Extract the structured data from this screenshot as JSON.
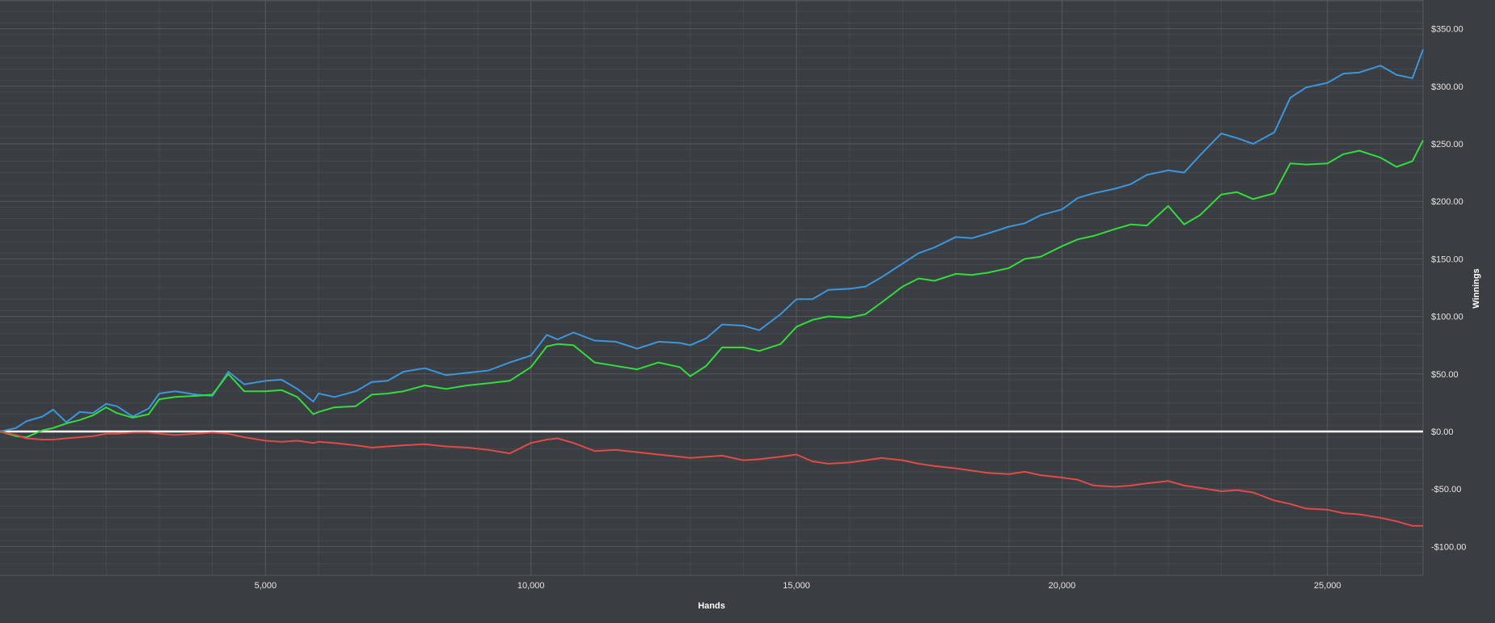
{
  "chart_data": {
    "type": "line",
    "xlabel": "Hands",
    "ylabel": "Winnings",
    "xlim": [
      0,
      26800
    ],
    "ylim": [
      -125,
      375
    ],
    "x_ticks": [
      {
        "value": 5000,
        "label": "5,000"
      },
      {
        "value": 10000,
        "label": "10,000"
      },
      {
        "value": 15000,
        "label": "15,000"
      },
      {
        "value": 20000,
        "label": "20,000"
      },
      {
        "value": 25000,
        "label": "25,000"
      }
    ],
    "y_ticks": [
      {
        "value": 350,
        "label": "$350.00"
      },
      {
        "value": 300,
        "label": "$300.00"
      },
      {
        "value": 250,
        "label": "$250.00"
      },
      {
        "value": 200,
        "label": "$200.00"
      },
      {
        "value": 150,
        "label": "$150.00"
      },
      {
        "value": 100,
        "label": "$100.00"
      },
      {
        "value": 50,
        "label": "$50.00"
      },
      {
        "value": 0,
        "label": "$0.00"
      },
      {
        "value": -50,
        "label": "-$50.00"
      },
      {
        "value": -100,
        "label": "-$100.00"
      }
    ],
    "grid": true,
    "legend": "none",
    "colors": {
      "background": "#3a3d42",
      "grid_major": "#555a60",
      "grid_minor": "#464a50",
      "zero_line": "#ffffff",
      "tick_text": "#e6e6e6",
      "label_text": "#ffffff"
    },
    "series": [
      {
        "color": "#3c96dc",
        "x": [
          0,
          300,
          500,
          800,
          1000,
          1250,
          1500,
          1750,
          2000,
          2200,
          2500,
          2800,
          3000,
          3300,
          3700,
          4000,
          4300,
          4600,
          5000,
          5300,
          5600,
          5900,
          6000,
          6300,
          6700,
          7000,
          7300,
          7600,
          8000,
          8400,
          8800,
          9200,
          9600,
          10000,
          10300,
          10500,
          10800,
          11200,
          11600,
          12000,
          12400,
          12800,
          13000,
          13300,
          13600,
          14000,
          14300,
          14700,
          15000,
          15300,
          15600,
          16000,
          16300,
          16600,
          17000,
          17300,
          17600,
          18000,
          18300,
          18600,
          19000,
          19300,
          19600,
          20000,
          20300,
          20600,
          21000,
          21300,
          21600,
          22000,
          22300,
          22600,
          23000,
          23300,
          23600,
          24000,
          24300,
          24600,
          25000,
          25300,
          25600,
          26000,
          26300,
          26600,
          26800
        ],
        "y": [
          0,
          3,
          9,
          13,
          19,
          8,
          17,
          16,
          24,
          22,
          13,
          20,
          33,
          35,
          32,
          31,
          52,
          41,
          44,
          45,
          37,
          26,
          33,
          30,
          35,
          43,
          44,
          52,
          55,
          49,
          51,
          53,
          60,
          66,
          84,
          80,
          86,
          79,
          78,
          72,
          78,
          77,
          75,
          81,
          93,
          92,
          88,
          102,
          115,
          115,
          123,
          124,
          126,
          134,
          146,
          155,
          160,
          169,
          168,
          172,
          178,
          181,
          188,
          193,
          203,
          207,
          211,
          215,
          223,
          227,
          225,
          240,
          259,
          255,
          250,
          260,
          290,
          299,
          303,
          311,
          312,
          318,
          310,
          307,
          332
        ]
      },
      {
        "color": "#32dc3c",
        "x": [
          0,
          300,
          500,
          800,
          1000,
          1250,
          1500,
          1750,
          2000,
          2200,
          2500,
          2800,
          3000,
          3300,
          3700,
          4000,
          4300,
          4600,
          5000,
          5300,
          5600,
          5900,
          6000,
          6300,
          6700,
          7000,
          7300,
          7600,
          8000,
          8400,
          8800,
          9200,
          9600,
          10000,
          10300,
          10500,
          10800,
          11200,
          11600,
          12000,
          12400,
          12800,
          13000,
          13300,
          13600,
          14000,
          14300,
          14700,
          15000,
          15300,
          15600,
          16000,
          16300,
          16600,
          17000,
          17300,
          17600,
          18000,
          18300,
          18600,
          19000,
          19300,
          19600,
          20000,
          20300,
          20600,
          21000,
          21300,
          21600,
          22000,
          22300,
          22600,
          23000,
          23300,
          23600,
          24000,
          24300,
          24600,
          25000,
          25300,
          25600,
          26000,
          26300,
          26600,
          26800
        ],
        "y": [
          0,
          -4,
          -5,
          1,
          3,
          7,
          10,
          14,
          21,
          16,
          12,
          15,
          28,
          30,
          31,
          32,
          50,
          35,
          35,
          36,
          30,
          15,
          17,
          21,
          22,
          32,
          33,
          35,
          40,
          37,
          40,
          42,
          44,
          56,
          74,
          76,
          75,
          60,
          57,
          54,
          60,
          56,
          48,
          57,
          73,
          73,
          70,
          76,
          91,
          97,
          100,
          99,
          102,
          112,
          126,
          133,
          131,
          137,
          136,
          138,
          142,
          150,
          152,
          161,
          167,
          170,
          176,
          180,
          179,
          196,
          180,
          188,
          206,
          208,
          202,
          207,
          233,
          232,
          233,
          241,
          244,
          238,
          230,
          235,
          253
        ]
      },
      {
        "color": "#e04b46",
        "x": [
          0,
          300,
          500,
          800,
          1000,
          1250,
          1500,
          1750,
          2000,
          2200,
          2500,
          2800,
          3000,
          3300,
          3700,
          4000,
          4300,
          4600,
          5000,
          5300,
          5600,
          5900,
          6000,
          6300,
          6700,
          7000,
          7300,
          7600,
          8000,
          8400,
          8800,
          9200,
          9600,
          10000,
          10300,
          10500,
          10800,
          11200,
          11600,
          12000,
          12400,
          12800,
          13000,
          13300,
          13600,
          14000,
          14300,
          14700,
          15000,
          15300,
          15600,
          16000,
          16300,
          16600,
          17000,
          17300,
          17600,
          18000,
          18300,
          18600,
          19000,
          19300,
          19600,
          20000,
          20300,
          20600,
          21000,
          21300,
          21600,
          22000,
          22300,
          22600,
          23000,
          23300,
          23600,
          24000,
          24300,
          24600,
          25000,
          25300,
          25600,
          26000,
          26300,
          26600,
          26800
        ],
        "y": [
          0,
          -3,
          -6,
          -7,
          -7,
          -6,
          -5,
          -4,
          -2,
          -2,
          -1,
          -1,
          -2,
          -3,
          -2,
          -1,
          -2,
          -5,
          -8,
          -9,
          -8,
          -10,
          -9,
          -10,
          -12,
          -14,
          -13,
          -12,
          -11,
          -13,
          -14,
          -16,
          -19,
          -10,
          -7,
          -6,
          -10,
          -17,
          -16,
          -18,
          -20,
          -22,
          -23,
          -22,
          -21,
          -25,
          -24,
          -22,
          -20,
          -26,
          -28,
          -27,
          -25,
          -23,
          -25,
          -28,
          -30,
          -32,
          -34,
          -36,
          -37,
          -35,
          -38,
          -40,
          -42,
          -47,
          -48,
          -47,
          -45,
          -43,
          -47,
          -49,
          -52,
          -51,
          -53,
          -60,
          -63,
          -67,
          -68,
          -71,
          -72,
          -75,
          -78,
          -82,
          -82
        ]
      }
    ]
  }
}
